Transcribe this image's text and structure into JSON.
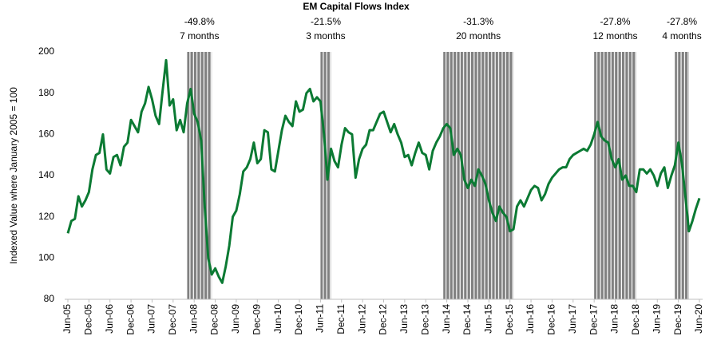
{
  "chart_data": {
    "type": "line",
    "title": "EM Capital Flows Index",
    "y_label": "Indexed Value where January 2005 = 100",
    "x": [
      0,
      1,
      2,
      3,
      4,
      5,
      6,
      7,
      8,
      9,
      10,
      11,
      12,
      13,
      14,
      15,
      16,
      17,
      18,
      19,
      20,
      21,
      22,
      23,
      24,
      25,
      26,
      27,
      28,
      29,
      30,
      31,
      32,
      33,
      34,
      35,
      36,
      37,
      38,
      39,
      40,
      41,
      42,
      43,
      44,
      45,
      46,
      47,
      48,
      49,
      50,
      51,
      52,
      53,
      54,
      55,
      56,
      57,
      58,
      59,
      60,
      61,
      62,
      63,
      64,
      65,
      66,
      67,
      68,
      69,
      70,
      71,
      72,
      73,
      74,
      75,
      76,
      77,
      78,
      79,
      80,
      81,
      82,
      83,
      84,
      85,
      86,
      87,
      88,
      89,
      90,
      91,
      92,
      93,
      94,
      95,
      96,
      97,
      98,
      99,
      100,
      101,
      102,
      103,
      104,
      105,
      106,
      107,
      108,
      109,
      110,
      111,
      112,
      113,
      114,
      115,
      116,
      117,
      118,
      119,
      120,
      121,
      122,
      123,
      124,
      125,
      126,
      127,
      128,
      129,
      130,
      131,
      132,
      133,
      134,
      135,
      136,
      137,
      138,
      139,
      140,
      141,
      142,
      143,
      144,
      145,
      146,
      147,
      148,
      149,
      150,
      151,
      152,
      153,
      154,
      155,
      156,
      157,
      158,
      159,
      160,
      161,
      162,
      163,
      164,
      165,
      166,
      167,
      168,
      169,
      170,
      171,
      172,
      173,
      174,
      175,
      176,
      177,
      178,
      179,
      180
    ],
    "series": [
      {
        "name": "EM Capital Flows Index",
        "color": "#0b7a33",
        "values": [
          112,
          118,
          119,
          130,
          125,
          128,
          132,
          143,
          150,
          151,
          160,
          143,
          141,
          149,
          150,
          145,
          154,
          156,
          167,
          164,
          161,
          171,
          175,
          183,
          177,
          169,
          165,
          181,
          196,
          174,
          177,
          162,
          167,
          161,
          175,
          182,
          170,
          166,
          157,
          125,
          100,
          92,
          95,
          91,
          88,
          96,
          106,
          120,
          123,
          131,
          142,
          144,
          148,
          156,
          146,
          148,
          162,
          161,
          143,
          142,
          152,
          162,
          169,
          166,
          164,
          176,
          171,
          172,
          180,
          182,
          176,
          178,
          176,
          160,
          138,
          153,
          147,
          144,
          155,
          163,
          161,
          160,
          139,
          148,
          153,
          155,
          162,
          162,
          166,
          170,
          171,
          166,
          161,
          165,
          160,
          156,
          149,
          150,
          145,
          151,
          156,
          151,
          150,
          143,
          152,
          156,
          159,
          163,
          165,
          163,
          150,
          153,
          150,
          138,
          134,
          138,
          135,
          143,
          140,
          136,
          128,
          122,
          118,
          125,
          122,
          120,
          113,
          114,
          125,
          128,
          125,
          129,
          133,
          135,
          134,
          128,
          131,
          136,
          139,
          141,
          143,
          144,
          144,
          148,
          150,
          151,
          152,
          153,
          152,
          155,
          160,
          166,
          159,
          157,
          156,
          148,
          144,
          148,
          138,
          140,
          135,
          135,
          132,
          143,
          143,
          141,
          143,
          140,
          135,
          141,
          144,
          134,
          140,
          145,
          156,
          146,
          130,
          113,
          118,
          124,
          129
        ]
      }
    ],
    "xlim": [
      0,
      180
    ],
    "xticks": [
      {
        "value": 0,
        "label": "Jun-05"
      },
      {
        "value": 6,
        "label": "Dec-05"
      },
      {
        "value": 12,
        "label": "Jun-06"
      },
      {
        "value": 18,
        "label": "Dec-06"
      },
      {
        "value": 24,
        "label": "Jun-07"
      },
      {
        "value": 30,
        "label": "Dec-07"
      },
      {
        "value": 36,
        "label": "Jun-08"
      },
      {
        "value": 42,
        "label": "Dec-08"
      },
      {
        "value": 48,
        "label": "Jun-09"
      },
      {
        "value": 54,
        "label": "Dec-09"
      },
      {
        "value": 60,
        "label": "Jun-10"
      },
      {
        "value": 66,
        "label": "Dec-10"
      },
      {
        "value": 72,
        "label": "Jun-11"
      },
      {
        "value": 78,
        "label": "Dec-11"
      },
      {
        "value": 84,
        "label": "Jun-12"
      },
      {
        "value": 90,
        "label": "Dec-12"
      },
      {
        "value": 96,
        "label": "Jun-13"
      },
      {
        "value": 102,
        "label": "Dec-13"
      },
      {
        "value": 108,
        "label": "Jun-14"
      },
      {
        "value": 114,
        "label": "Dec-14"
      },
      {
        "value": 120,
        "label": "Jun-15"
      },
      {
        "value": 126,
        "label": "Dec-15"
      },
      {
        "value": 132,
        "label": "Jun-16"
      },
      {
        "value": 138,
        "label": "Dec-16"
      },
      {
        "value": 144,
        "label": "Jun-17"
      },
      {
        "value": 150,
        "label": "Dec-17"
      },
      {
        "value": 156,
        "label": "Jun-18"
      },
      {
        "value": 162,
        "label": "Dec-18"
      },
      {
        "value": 168,
        "label": "Jun-19"
      },
      {
        "value": 174,
        "label": "Dec-19"
      },
      {
        "value": 180,
        "label": "Jun-20"
      }
    ],
    "ylim": [
      80,
      200
    ],
    "yticks": [
      80,
      100,
      120,
      140,
      160,
      180,
      200
    ],
    "shaded_periods": [
      {
        "start": 34,
        "end": 41,
        "change": "-49.8%",
        "duration": "7 months"
      },
      {
        "start": 72,
        "end": 75,
        "change": "-21.5%",
        "duration": "3 months"
      },
      {
        "start": 107,
        "end": 127,
        "change": "-31.3%",
        "duration": "20 months"
      },
      {
        "start": 150,
        "end": 162,
        "change": "-27.8%",
        "duration": "12 months"
      },
      {
        "start": 173,
        "end": 177,
        "change": "-27.8%",
        "duration": "4 months"
      }
    ],
    "shade_color": "#808080"
  }
}
